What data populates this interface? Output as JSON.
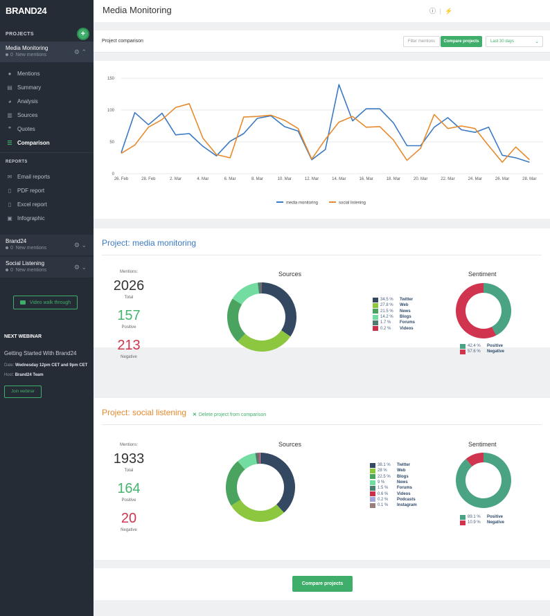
{
  "brand": {
    "logo_text": "BRAND24"
  },
  "sidebar": {
    "projects_heading": "PROJECTS",
    "add_icon": "plus-icon",
    "active_project": {
      "name": "Media Monitoring",
      "count": "0",
      "sub": "New mentions"
    },
    "menu": [
      {
        "label": "Mentions",
        "icon": "chat-icon"
      },
      {
        "label": "Summary",
        "icon": "document-icon"
      },
      {
        "label": "Analysis",
        "icon": "pie-icon"
      },
      {
        "label": "Sources",
        "icon": "building-icon"
      },
      {
        "label": "Quotes",
        "icon": "quote-icon"
      },
      {
        "label": "Comparison",
        "icon": "bars-icon"
      }
    ],
    "reports_heading": "REPORTS",
    "reports": [
      {
        "label": "Email reports",
        "icon": "mail-icon"
      },
      {
        "label": "PDF report",
        "icon": "pdf-icon"
      },
      {
        "label": "Excel report",
        "icon": "excel-icon"
      },
      {
        "label": "Infographic",
        "icon": "image-icon"
      }
    ],
    "other_projects": [
      {
        "name": "Brand24",
        "count": "0",
        "sub": "New mentions"
      },
      {
        "name": "Social Listening",
        "count": "0",
        "sub": "New mentions"
      }
    ],
    "video_button": "Video walk through",
    "webinar": {
      "heading": "NEXT WEBINAR",
      "title": "Getting Started With Brand24",
      "date_label": "Date:",
      "date_value": "Wednesday 12pm CET and 9pm CET",
      "host_label": "Host:",
      "host_value": "Brand24 Team",
      "join_label": "Join webinar"
    }
  },
  "topbar": {
    "title": "Media Monitoring",
    "help_icon": "help-icon",
    "plug_icon": "plug-icon"
  },
  "comparison": {
    "title": "Project comparison",
    "filter_label": "Filter mentions",
    "compare_label": "Compare projects",
    "range_label": "Last 30 days"
  },
  "colors": {
    "blue": "#3a79c2",
    "orange": "#e78a2d",
    "green": "#3fae6a"
  },
  "chart_data": {
    "type": "line",
    "x": [
      "26. Feb",
      "27. Feb",
      "28. Feb",
      "1. Mar",
      "2. Mar",
      "3. Mar",
      "4. Mar",
      "5. Mar",
      "6. Mar",
      "7. Mar",
      "8. Mar",
      "9. Mar",
      "10. Mar",
      "11. Mar",
      "12. Mar",
      "13. Mar",
      "14. Mar",
      "15. Mar",
      "16. Mar",
      "17. Mar",
      "18. Mar",
      "19. Mar",
      "20. Mar",
      "21. Mar",
      "22. Mar",
      "23. Mar",
      "24. Mar",
      "25. Mar",
      "26. Mar",
      "27. Mar",
      "28. Mar",
      "29. Mar"
    ],
    "tick_labels": [
      "26. Feb",
      "28. Feb",
      "2. Mar",
      "4. Mar",
      "6. Mar",
      "8. Mar",
      "10. Mar",
      "12. Mar",
      "14. Mar",
      "16. Mar",
      "18. Mar",
      "20. Mar",
      "22. Mar",
      "24. Mar",
      "26. Mar",
      "28. Mar"
    ],
    "yticks": [
      0,
      50,
      100,
      150
    ],
    "ylim": [
      0,
      150
    ],
    "series": [
      {
        "name": "media monitoring",
        "color": "#3a79c2",
        "values": [
          33,
          96,
          77,
          95,
          61,
          63,
          43,
          28,
          51,
          63,
          87,
          91,
          74,
          67,
          22,
          38,
          140,
          83,
          102,
          102,
          80,
          44,
          44,
          73,
          88,
          69,
          65,
          73,
          29,
          25,
          18,
          null
        ]
      },
      {
        "name": "social listening",
        "color": "#e78a2d",
        "values": [
          32,
          45,
          73,
          85,
          104,
          110,
          56,
          30,
          25,
          89,
          90,
          92,
          84,
          71,
          23,
          54,
          81,
          90,
          73,
          74,
          53,
          21,
          40,
          93,
          71,
          75,
          71,
          44,
          18,
          42,
          22,
          null
        ]
      }
    ],
    "legend_position": "bottom"
  },
  "project1": {
    "title": "Project: media monitoring",
    "mentions_label": "Mentions:",
    "total": "2026",
    "total_label": "Total",
    "positive": "157",
    "positive_label": "Positive",
    "negative": "213",
    "negative_label": "Negative",
    "sources_title": "Sources",
    "sentiment_title": "Sentiment",
    "sources": [
      {
        "pct": "34.5 %",
        "label": "Twitter",
        "value": 34.5,
        "color": "#344861"
      },
      {
        "pct": "27.8 %",
        "label": "Web",
        "value": 27.8,
        "color": "#8dc63f"
      },
      {
        "pct": "21.5 %",
        "label": "News",
        "value": 21.5,
        "color": "#4aa35e"
      },
      {
        "pct": "14.2 %",
        "label": "Blogs",
        "value": 14.2,
        "color": "#73dca0"
      },
      {
        "pct": "1.7 %",
        "label": "Forums",
        "value": 1.7,
        "color": "#4e7c6e"
      },
      {
        "pct": "0.2 %",
        "label": "Videos",
        "value": 0.2,
        "color": "#c9304a"
      }
    ],
    "sentiment": [
      {
        "pct": "42.4 %",
        "label": "Positive",
        "value": 42.4,
        "color": "#4aa383"
      },
      {
        "pct": "57.6 %",
        "label": "Negative",
        "value": 57.6,
        "color": "#d0344f"
      }
    ]
  },
  "project2": {
    "title": "Project: social listening",
    "delete_label": "Delete project from comparison",
    "mentions_label": "Mentions:",
    "total": "1933",
    "total_label": "Total",
    "positive": "164",
    "positive_label": "Positive",
    "negative": "20",
    "negative_label": "Negative",
    "sources_title": "Sources",
    "sentiment_title": "Sentiment",
    "sources": [
      {
        "pct": "38.1 %",
        "label": "Twitter",
        "value": 38.1,
        "color": "#344861"
      },
      {
        "pct": "28 %",
        "label": "Web",
        "value": 28,
        "color": "#8dc63f"
      },
      {
        "pct": "22.5 %",
        "label": "Blogs",
        "value": 22.5,
        "color": "#4aa35e"
      },
      {
        "pct": "9 %",
        "label": "News",
        "value": 9,
        "color": "#73dca0"
      },
      {
        "pct": "1.5 %",
        "label": "Forums",
        "value": 1.5,
        "color": "#4e7c6e"
      },
      {
        "pct": "0.6 %",
        "label": "Videos",
        "value": 0.6,
        "color": "#c9304a"
      },
      {
        "pct": "0.2 %",
        "label": "Podcasts",
        "value": 0.2,
        "color": "#a4a8d8"
      },
      {
        "pct": "0.1 %",
        "label": "Instagram",
        "value": 0.1,
        "color": "#9b7d7a"
      }
    ],
    "sentiment": [
      {
        "pct": "89.1 %",
        "label": "Positive",
        "value": 89.1,
        "color": "#4aa383"
      },
      {
        "pct": "10.9 %",
        "label": "Negative",
        "value": 10.9,
        "color": "#d0344f"
      }
    ]
  },
  "bottom": {
    "compare_label": "Compare projects"
  }
}
